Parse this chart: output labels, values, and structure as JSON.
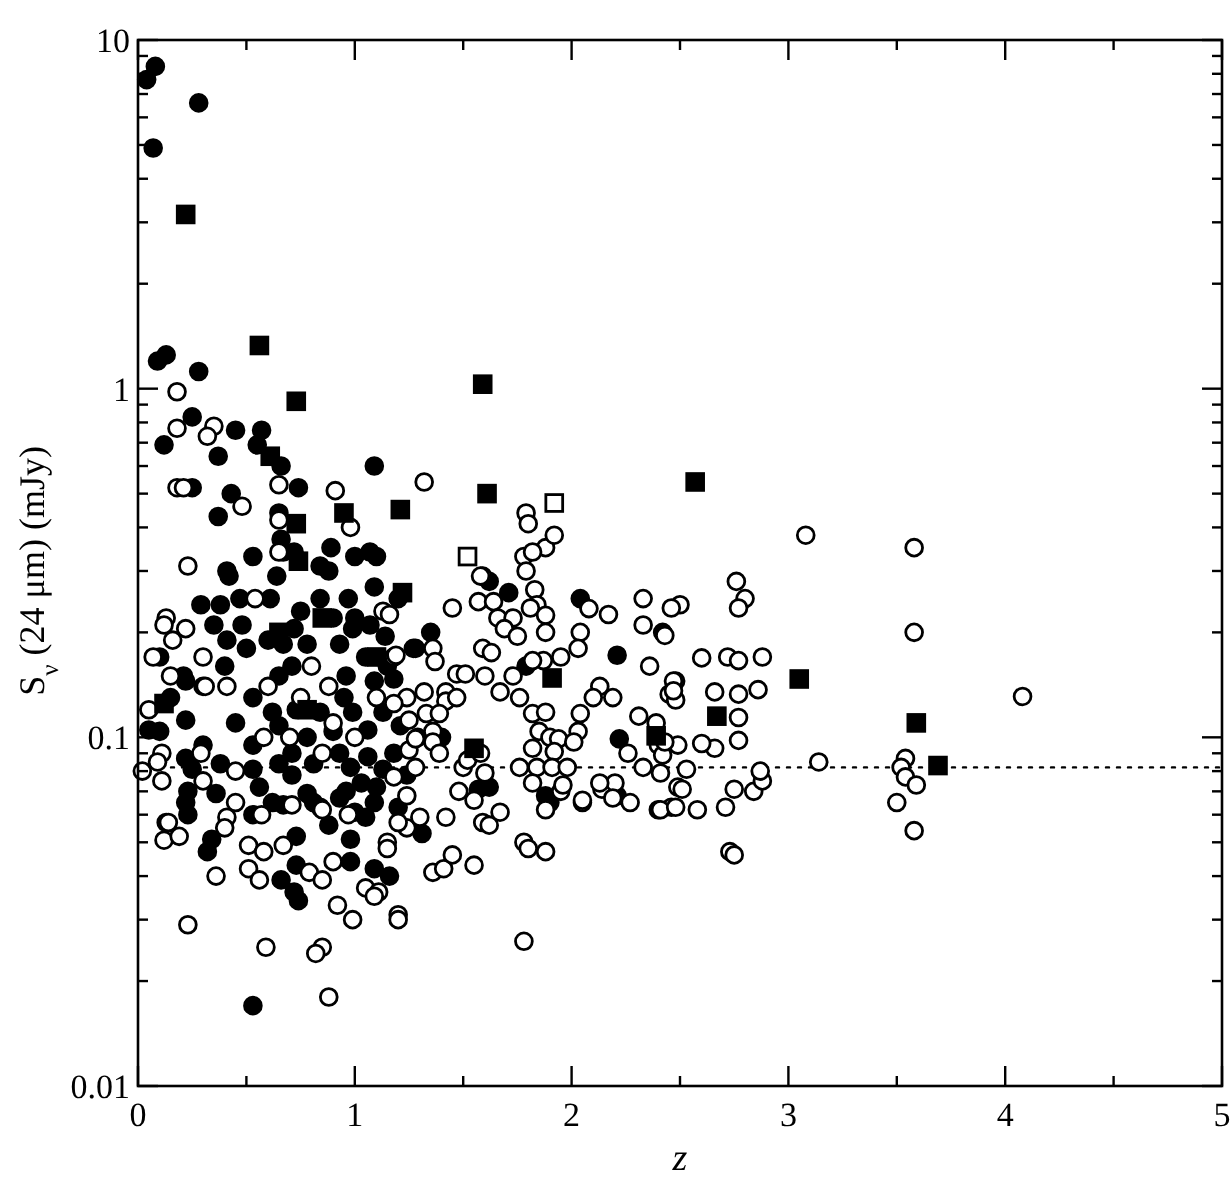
{
  "chart_data": {
    "type": "scatter",
    "xlabel": "z",
    "ylabel": "S$_{ν}$ (24 μm)  (mJy)",
    "log": "y",
    "xlim": [
      0,
      5
    ],
    "ylim": [
      0.01,
      10
    ],
    "xticks": [
      0,
      {
        "value": 0.5,
        "label": null
      },
      1,
      {
        "value": 1.5,
        "label": null
      },
      2,
      {
        "value": 2.5,
        "label": null
      },
      3,
      {
        "value": 3.5,
        "label": null
      },
      4,
      {
        "value": 4.5,
        "label": null
      },
      5
    ],
    "yticks": [
      0.01,
      {
        "value": 0.02,
        "label": null
      },
      {
        "value": 0.03,
        "label": null
      },
      {
        "value": 0.04,
        "label": null
      },
      {
        "value": 0.05,
        "label": null
      },
      {
        "value": 0.06,
        "label": null
      },
      {
        "value": 0.07,
        "label": null
      },
      {
        "value": 0.08,
        "label": null
      },
      {
        "value": 0.09,
        "label": null
      },
      0.1,
      {
        "value": 0.2,
        "label": null
      },
      {
        "value": 0.3,
        "label": null
      },
      {
        "value": 0.4,
        "label": null
      },
      {
        "value": 0.5,
        "label": null
      },
      {
        "value": 0.6,
        "label": null
      },
      {
        "value": 0.7,
        "label": null
      },
      {
        "value": 0.8,
        "label": null
      },
      {
        "value": 0.9,
        "label": null
      },
      1,
      {
        "value": 2,
        "label": null
      },
      {
        "value": 3,
        "label": null
      },
      {
        "value": 4,
        "label": null
      },
      {
        "value": 5,
        "label": null
      },
      {
        "value": 6,
        "label": null
      },
      {
        "value": 7,
        "label": null
      },
      {
        "value": 8,
        "label": null
      },
      {
        "value": 9,
        "label": null
      },
      10
    ],
    "ref_lines": [
      {
        "axis": "y",
        "value": 0.082,
        "line_style": "dotted",
        "color": "#000000"
      }
    ],
    "series": [
      {
        "type": "scatter",
        "marker": "circle",
        "color": "#000000",
        "x": [
          0.04,
          0.08,
          0.28,
          0.07,
          0.09,
          0.13,
          0.28,
          0.25,
          0.12,
          0.45,
          0.57,
          0.55,
          0.37,
          0.66,
          1.09,
          0.74,
          0.25,
          0.43,
          0.37,
          0.53,
          0.89,
          1.0,
          1.07,
          1.1,
          0.65,
          0.66,
          0.72,
          0.41,
          0.67,
          0.84,
          0.88,
          0.42,
          0.64,
          0.29,
          0.38,
          0.47,
          0.61,
          0.84,
          0.97,
          1.09,
          0.35,
          0.41,
          0.48,
          0.72,
          0.99,
          1.07,
          1.14,
          0.67,
          0.78,
          0.93,
          1.27,
          0.1,
          0.21,
          0.22,
          0.3,
          0.4,
          0.65,
          0.71,
          0.96,
          1.09,
          1.18,
          0.1,
          0.22,
          0.53,
          0.62,
          0.65,
          0.73,
          0.78,
          0.84,
          0.9,
          0.99,
          1.06,
          1.13,
          1.21,
          1.29,
          0.22,
          0.25,
          0.38,
          0.53,
          0.53,
          0.65,
          0.71,
          0.71,
          0.81,
          0.93,
          0.98,
          1.03,
          1.06,
          1.13,
          1.18,
          1.24,
          0.22,
          0.62,
          0.81,
          0.93,
          1.09,
          1.2,
          0.53,
          0.23,
          0.32,
          0.34,
          0.36,
          0.23,
          0.66,
          0.73,
          0.74,
          0.72,
          0.73,
          0.78,
          0.84,
          0.88,
          0.98,
          0.98,
          1.09,
          1.16,
          1.0,
          1.31,
          1.05,
          0.53,
          0.56,
          1.9,
          0.96,
          1.1,
          0.67,
          1.62,
          1.71,
          2.04,
          2.42,
          2.21,
          1.79,
          1.28,
          1.62,
          1.57,
          1.88,
          2.21,
          2.22,
          1.0,
          1.05,
          0.95,
          1.15,
          0.9,
          1.2,
          0.75,
          0.6,
          0.15,
          0.05,
          0.3,
          0.45,
          0.5,
          1.35,
          1.4
        ],
        "values": [
          7.7,
          8.4,
          6.6,
          4.9,
          1.2,
          1.25,
          1.12,
          0.83,
          0.69,
          0.76,
          0.76,
          0.69,
          0.64,
          0.6,
          0.6,
          0.52,
          0.52,
          0.5,
          0.43,
          0.33,
          0.35,
          0.33,
          0.34,
          0.33,
          0.44,
          0.37,
          0.34,
          0.3,
          0.34,
          0.31,
          0.3,
          0.29,
          0.29,
          0.24,
          0.24,
          0.25,
          0.25,
          0.25,
          0.25,
          0.27,
          0.21,
          0.19,
          0.21,
          0.205,
          0.205,
          0.21,
          0.195,
          0.185,
          0.185,
          0.185,
          0.18,
          0.17,
          0.15,
          0.145,
          0.14,
          0.16,
          0.15,
          0.16,
          0.15,
          0.145,
          0.147,
          0.104,
          0.112,
          0.13,
          0.118,
          0.108,
          0.12,
          0.1,
          0.118,
          0.104,
          0.118,
          0.105,
          0.118,
          0.108,
          0.1,
          0.087,
          0.081,
          0.084,
          0.095,
          0.081,
          0.084,
          0.09,
          0.078,
          0.084,
          0.09,
          0.082,
          0.074,
          0.088,
          0.081,
          0.09,
          0.078,
          0.065,
          0.065,
          0.065,
          0.067,
          0.065,
          0.063,
          0.017,
          0.06,
          0.047,
          0.051,
          0.069,
          0.07,
          0.039,
          0.043,
          0.034,
          0.036,
          0.052,
          0.069,
          0.063,
          0.056,
          0.051,
          0.044,
          0.042,
          0.04,
          0.061,
          0.053,
          0.059,
          0.06,
          0.072,
          0.065,
          0.07,
          0.072,
          0.064,
          0.28,
          0.26,
          0.25,
          0.2,
          0.172,
          0.16,
          0.18,
          0.072,
          0.071,
          0.068,
          0.068,
          0.099,
          0.22,
          0.17,
          0.13,
          0.16,
          0.22,
          0.25,
          0.23,
          0.19,
          0.13,
          0.105,
          0.095,
          0.11,
          0.18,
          0.2,
          0.1
        ]
      },
      {
        "type": "scatter",
        "marker": "circle",
        "color": "#ffffff",
        "x": [
          0.18,
          0.18,
          0.35,
          0.32,
          0.18,
          0.21,
          0.65,
          0.91,
          1.32,
          0.48,
          0.98,
          1.79,
          1.8,
          1.78,
          1.88,
          1.92,
          0.23,
          0.65,
          0.65,
          1.59,
          0.13,
          0.12,
          0.22,
          0.16,
          0.07,
          0.15,
          0.31,
          0.41,
          0.54,
          0.11,
          0.09,
          0.11,
          0.29,
          0.45,
          0.58,
          0.75,
          0.88,
          0.9,
          1.25,
          1.25,
          1.13,
          1.16,
          1.18,
          0.41,
          0.71,
          0.13,
          0.57,
          0.85,
          0.97,
          0.12,
          0.14,
          0.19,
          0.36,
          0.23,
          0.4,
          0.51,
          0.51,
          0.56,
          0.59,
          0.58,
          0.67,
          0.79,
          0.85,
          0.85,
          0.82,
          0.88,
          0.9,
          0.92,
          0.99,
          1.05,
          1.11,
          1.09,
          1.2,
          1.2,
          1.15,
          1.15,
          1.24,
          1.36,
          1.41,
          1.45,
          1.55,
          1.59,
          1.62,
          1.78,
          1.78,
          1.8,
          1.88,
          1.67,
          1.95,
          2.05,
          2.14,
          2.27,
          2.4,
          2.46,
          3.08,
          3.58,
          3.58,
          4.08,
          3.14,
          3.54,
          3.52,
          3.54,
          3.59,
          3.5,
          3.58,
          2.33,
          2.5,
          2.33,
          2.43,
          2.36,
          2.48,
          2.45,
          2.48,
          2.6,
          2.72,
          2.77,
          2.88,
          2.76,
          2.8,
          2.77,
          2.66,
          2.77,
          2.86,
          2.77,
          2.77,
          2.66,
          2.6,
          2.49,
          2.4,
          2.42,
          2.33,
          2.41,
          2.53,
          2.49,
          2.51,
          2.41,
          2.48,
          2.58,
          2.71,
          2.75,
          2.84,
          2.88,
          2.87,
          2.73,
          2.75,
          2.31,
          2.39,
          1.82,
          1.58,
          1.83,
          1.84,
          1.81,
          1.45,
          1.57,
          1.64,
          1.66,
          1.73,
          1.69,
          1.75,
          1.88,
          1.88,
          2.08,
          2.17,
          2.46,
          2.04,
          2.03,
          1.95,
          1.87,
          1.82,
          1.73,
          1.67,
          1.6,
          1.59,
          1.63,
          1.47,
          1.51,
          1.36,
          1.37,
          1.19,
          1.42,
          1.42,
          1.47,
          1.32,
          1.24,
          1.18,
          1.33,
          1.39,
          1.36,
          1.28,
          1.36,
          1.39,
          1.28,
          1.18,
          1.5,
          1.52,
          1.58,
          1.6,
          1.48,
          1.55,
          1.24,
          1.2,
          1.3,
          1.42,
          1.76,
          1.82,
          1.88,
          1.85,
          1.9,
          1.94,
          2.03,
          2.01,
          1.92,
          1.82,
          1.84,
          1.91,
          1.98,
          1.76,
          1.82,
          1.96,
          1.88,
          2.05,
          2.2,
          2.13,
          2.19,
          2.26,
          2.13,
          2.1,
          2.04,
          2.19,
          2.43,
          2.47,
          2.47,
          1.79,
          0.05,
          0.02,
          0.3,
          0.6,
          0.8,
          1.0,
          0.85,
          0.45,
          0.7,
          1.1,
          0.3
        ],
        "values": [
          0.98,
          0.77,
          0.78,
          0.73,
          0.52,
          0.52,
          0.53,
          0.51,
          0.54,
          0.46,
          0.4,
          0.44,
          0.41,
          0.33,
          0.35,
          0.38,
          0.31,
          0.42,
          0.34,
          0.29,
          0.22,
          0.21,
          0.205,
          0.19,
          0.17,
          0.15,
          0.14,
          0.14,
          0.25,
          0.09,
          0.085,
          0.075,
          0.09,
          0.08,
          0.1,
          0.13,
          0.14,
          0.11,
          0.112,
          0.092,
          0.23,
          0.225,
          0.17,
          0.059,
          0.064,
          0.057,
          0.06,
          0.062,
          0.06,
          0.0507,
          0.057,
          0.052,
          0.04,
          0.029,
          0.055,
          0.049,
          0.042,
          0.039,
          0.025,
          0.047,
          0.049,
          0.041,
          0.039,
          0.025,
          0.024,
          0.018,
          0.044,
          0.033,
          0.03,
          0.037,
          0.036,
          0.035,
          0.031,
          0.03,
          0.05,
          0.048,
          0.055,
          0.041,
          0.042,
          0.046,
          0.043,
          0.057,
          0.056,
          0.026,
          0.05,
          0.048,
          0.047,
          0.061,
          0.07,
          0.065,
          0.071,
          0.065,
          0.062,
          0.063,
          0.38,
          0.35,
          0.2,
          0.131,
          0.085,
          0.087,
          0.082,
          0.077,
          0.073,
          0.065,
          0.054,
          0.25,
          0.24,
          0.21,
          0.196,
          0.16,
          0.145,
          0.133,
          0.128,
          0.169,
          0.17,
          0.166,
          0.17,
          0.28,
          0.25,
          0.235,
          0.135,
          0.133,
          0.137,
          0.114,
          0.098,
          0.093,
          0.096,
          0.095,
          0.095,
          0.089,
          0.082,
          0.079,
          0.081,
          0.072,
          0.071,
          0.062,
          0.063,
          0.062,
          0.063,
          0.071,
          0.07,
          0.075,
          0.08,
          0.047,
          0.046,
          0.115,
          0.11,
          0.34,
          0.29,
          0.265,
          0.24,
          0.235,
          0.235,
          0.245,
          0.245,
          0.22,
          0.22,
          0.205,
          0.195,
          0.224,
          0.2,
          0.234,
          0.225,
          0.235,
          0.2,
          0.18,
          0.17,
          0.166,
          0.166,
          0.15,
          0.135,
          0.15,
          0.18,
          0.175,
          0.152,
          0.152,
          0.18,
          0.165,
          0.172,
          0.135,
          0.127,
          0.13,
          0.135,
          0.13,
          0.125,
          0.117,
          0.117,
          0.104,
          0.099,
          0.097,
          0.09,
          0.082,
          0.077,
          0.082,
          0.086,
          0.09,
          0.079,
          0.07,
          0.066,
          0.068,
          0.057,
          0.059,
          0.059,
          0.13,
          0.117,
          0.118,
          0.104,
          0.1,
          0.099,
          0.104,
          0.097,
          0.091,
          0.093,
          0.082,
          0.082,
          0.082,
          0.082,
          0.074,
          0.073,
          0.062,
          0.066,
          0.074,
          0.074,
          0.067,
          0.09,
          0.14,
          0.13,
          0.117,
          0.13,
          0.097,
          0.145,
          0.136,
          0.3,
          0.12,
          0.08,
          0.17,
          0.14,
          0.16,
          0.1,
          0.09,
          0.065,
          0.1,
          0.13,
          0.075
        ]
      },
      {
        "type": "scatter",
        "marker": "square",
        "color": "#000000",
        "x": [
          0.22,
          0.56,
          0.73,
          1.59,
          1.61,
          1.21,
          2.57,
          3.05,
          3.59,
          3.69,
          0.95,
          0.73,
          0.61,
          0.74,
          1.22,
          1.91,
          1.55,
          2.67,
          2.39,
          0.12,
          0.65,
          0.85,
          0.78,
          1.1
        ],
        "values": [
          3.16,
          1.33,
          0.92,
          1.03,
          0.5,
          0.45,
          0.54,
          0.147,
          0.11,
          0.083,
          0.44,
          0.41,
          0.64,
          0.32,
          0.26,
          0.148,
          0.093,
          0.115,
          0.101,
          0.125,
          0.2,
          0.22,
          0.12,
          0.17
        ]
      },
      {
        "type": "scatter",
        "marker": "square",
        "color": "#ffffff",
        "x": [
          1.52,
          1.92
        ],
        "values": [
          0.33,
          0.47
        ]
      }
    ]
  }
}
